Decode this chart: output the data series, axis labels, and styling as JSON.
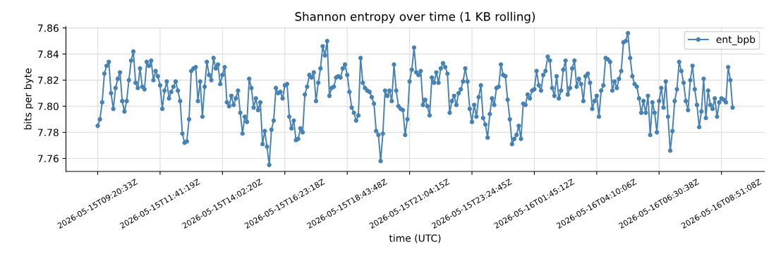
{
  "chart_data": {
    "type": "line",
    "title": "Shannon entropy over time (1 KB rolling)",
    "xlabel": "time (UTC)",
    "ylabel": "bits per byte",
    "categories": [
      "2026-05-15T09:20:33Z",
      null,
      null,
      null,
      null,
      null,
      null,
      null,
      null,
      null,
      null,
      null,
      null,
      null,
      null,
      null,
      null,
      null,
      null,
      null,
      null,
      null,
      null,
      null,
      null,
      null,
      null,
      null,
      "2026-05-15T11:41:19Z",
      null,
      null,
      null,
      null,
      null,
      null,
      null,
      null,
      null,
      null,
      null,
      null,
      null,
      null,
      null,
      null,
      null,
      null,
      null,
      null,
      null,
      null,
      null,
      null,
      null,
      null,
      null,
      "2026-05-15T14:02:20Z",
      null,
      null,
      null,
      null,
      null,
      null,
      null,
      null,
      null,
      null,
      null,
      null,
      null,
      null,
      null,
      null,
      null,
      null,
      null,
      null,
      null,
      null,
      null,
      null,
      null,
      null,
      null,
      "2026-05-15T16:23:18Z",
      null,
      null,
      null,
      null,
      null,
      null,
      null,
      null,
      null,
      null,
      null,
      null,
      null,
      null,
      null,
      null,
      null,
      null,
      null,
      null,
      null,
      null,
      null,
      null,
      null,
      null,
      null,
      "2026-05-15T18:43:48Z",
      null,
      null,
      null,
      null,
      null,
      null,
      null,
      null,
      null,
      null,
      null,
      null,
      null,
      null,
      null,
      null,
      null,
      null,
      null,
      null,
      null,
      null,
      null,
      null,
      null,
      null,
      null,
      "2026-05-15T21:04:15Z",
      null,
      null,
      null,
      null,
      null,
      null,
      null,
      null,
      null,
      null,
      null,
      null,
      null,
      null,
      null,
      null,
      null,
      null,
      null,
      null,
      null,
      null,
      null,
      null,
      null,
      null,
      null,
      "2026-05-15T23:24:45Z",
      null,
      null,
      null,
      null,
      null,
      null,
      null,
      null,
      null,
      null,
      null,
      null,
      null,
      null,
      null,
      null,
      null,
      null,
      null,
      null,
      null,
      null,
      null,
      null,
      null,
      null,
      null,
      "2026-05-16T01:45:12Z",
      null,
      null,
      null,
      null,
      null,
      null,
      null,
      null,
      null,
      null,
      null,
      null,
      null,
      null,
      null,
      null,
      null,
      null,
      null,
      null,
      null,
      null,
      null,
      null,
      null,
      null,
      null,
      "2026-05-16T04:10:06Z",
      null,
      null,
      null,
      null,
      null,
      null,
      null,
      null,
      null,
      null,
      null,
      null,
      null,
      null,
      null,
      null,
      null,
      null,
      null,
      null,
      null,
      null,
      null,
      null,
      null,
      null,
      null,
      "2026-05-16T06:30:38Z",
      null,
      null,
      null,
      null,
      null,
      null,
      null,
      null,
      null,
      null,
      null,
      null,
      null,
      null,
      null,
      null,
      null,
      null,
      null,
      null,
      null,
      null,
      null,
      null,
      null,
      null,
      null,
      "2026-05-16T08:51:08Z",
      null,
      null,
      null,
      null,
      null
    ],
    "series": [
      {
        "name": "ent_bpb",
        "color": "#4682b4",
        "values": [
          7.785,
          7.79,
          7.803,
          7.825,
          7.831,
          7.834,
          7.81,
          7.798,
          7.814,
          7.821,
          7.826,
          7.804,
          7.796,
          7.804,
          7.82,
          7.835,
          7.842,
          7.818,
          7.814,
          7.829,
          7.815,
          7.813,
          7.834,
          7.831,
          7.835,
          7.82,
          7.827,
          7.823,
          7.816,
          7.798,
          7.812,
          7.819,
          7.806,
          7.811,
          7.815,
          7.819,
          7.812,
          7.804,
          7.779,
          7.772,
          7.773,
          7.79,
          7.827,
          7.829,
          7.83,
          7.804,
          7.819,
          7.792,
          7.815,
          7.834,
          7.824,
          7.82,
          7.837,
          7.829,
          7.832,
          7.817,
          7.824,
          7.83,
          7.803,
          7.8,
          7.808,
          7.801,
          7.806,
          7.812,
          7.795,
          7.779,
          7.792,
          7.788,
          7.821,
          7.814,
          7.799,
          7.806,
          7.797,
          7.803,
          7.771,
          7.781,
          7.769,
          7.755,
          7.782,
          7.789,
          7.814,
          7.81,
          7.811,
          7.806,
          7.816,
          7.817,
          7.792,
          7.783,
          7.789,
          7.774,
          7.775,
          7.783,
          7.78,
          7.809,
          7.815,
          7.824,
          7.822,
          7.826,
          7.804,
          7.818,
          7.829,
          7.846,
          7.839,
          7.85,
          7.808,
          7.814,
          7.815,
          7.822,
          7.823,
          7.822,
          7.829,
          7.832,
          7.824,
          7.811,
          7.799,
          7.795,
          7.789,
          7.793,
          7.837,
          7.818,
          7.814,
          7.812,
          7.811,
          7.807,
          7.802,
          7.781,
          7.778,
          7.758,
          7.779,
          7.812,
          7.808,
          7.812,
          7.804,
          7.832,
          7.812,
          7.8,
          7.798,
          7.797,
          7.778,
          7.79,
          7.819,
          7.828,
          7.845,
          7.826,
          7.824,
          7.827,
          7.801,
          7.805,
          7.8,
          7.793,
          7.822,
          7.818,
          7.826,
          7.818,
          7.829,
          7.833,
          7.83,
          7.825,
          7.795,
          7.804,
          7.808,
          7.801,
          7.81,
          7.813,
          7.819,
          7.829,
          7.819,
          7.798,
          7.788,
          7.801,
          7.792,
          7.807,
          7.816,
          7.791,
          7.786,
          7.776,
          7.794,
          7.806,
          7.801,
          7.814,
          7.815,
          7.832,
          7.824,
          7.823,
          7.805,
          7.79,
          7.771,
          7.775,
          7.778,
          7.785,
          7.775,
          7.802,
          7.801,
          7.809,
          7.806,
          7.812,
          7.813,
          7.827,
          7.816,
          7.812,
          7.824,
          7.827,
          7.838,
          7.835,
          7.814,
          7.808,
          7.823,
          7.806,
          7.812,
          7.828,
          7.835,
          7.809,
          7.814,
          7.829,
          7.835,
          7.815,
          7.821,
          7.817,
          7.804,
          7.823,
          7.825,
          7.818,
          7.798,
          7.804,
          7.808,
          7.792,
          7.812,
          7.816,
          7.837,
          7.836,
          7.834,
          7.812,
          7.819,
          7.814,
          7.821,
          7.827,
          7.849,
          7.85,
          7.856,
          7.837,
          7.823,
          7.817,
          7.815,
          7.806,
          7.795,
          7.804,
          7.795,
          7.808,
          7.778,
          7.803,
          7.795,
          7.78,
          7.804,
          7.814,
          7.799,
          7.819,
          7.792,
          7.766,
          7.781,
          7.804,
          7.813,
          7.834,
          7.827,
          7.818,
          7.804,
          7.797,
          7.82,
          7.831,
          7.813,
          7.801,
          7.784,
          7.796,
          7.821,
          7.791,
          7.812,
          7.801,
          7.798,
          7.806,
          7.792,
          7.803,
          7.806,
          7.805,
          7.803,
          7.83,
          7.82,
          7.799
        ]
      }
    ],
    "ylim": [
      7.75,
      7.861
    ],
    "yticks": [
      {
        "value": 7.76,
        "label": "7.76"
      },
      {
        "value": 7.78,
        "label": "7.78"
      },
      {
        "value": 7.8,
        "label": "7.80"
      },
      {
        "value": 7.82,
        "label": "7.82"
      },
      {
        "value": 7.84,
        "label": "7.84"
      },
      {
        "value": 7.86,
        "label": "7.86"
      }
    ],
    "grid": true,
    "legend": "top right",
    "marker": "circle",
    "line_style": "solid"
  }
}
